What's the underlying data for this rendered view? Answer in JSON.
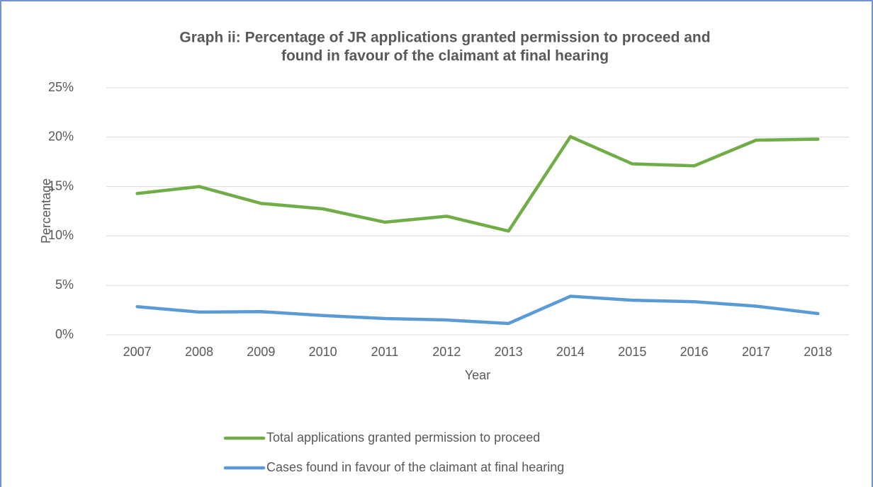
{
  "chart_data": {
    "type": "line",
    "title": [
      "Graph ii: Percentage of JR applications granted permission to proceed and",
      "found in favour of the claimant at final hearing"
    ],
    "x_label": "Year",
    "y_label": "Percentage",
    "categories": [
      "2007",
      "2008",
      "2009",
      "2010",
      "2011",
      "2012",
      "2013",
      "2014",
      "2015",
      "2016",
      "2017",
      "2018"
    ],
    "series": [
      {
        "name": "Total applications granted permission to proceed",
        "color": "#70ad47",
        "values": [
          14.3,
          15.0,
          13.3,
          12.75,
          11.4,
          12.0,
          10.5,
          20.05,
          17.3,
          17.1,
          19.7,
          19.8
        ]
      },
      {
        "name": "Cases found in favour of the claimant at final hearing",
        "color": "#5b9bd5",
        "values": [
          2.85,
          2.3,
          2.35,
          1.95,
          1.65,
          1.5,
          1.15,
          3.9,
          3.5,
          3.35,
          2.9,
          2.15
        ]
      }
    ],
    "ylim": [
      0,
      25
    ],
    "yticks": [
      {
        "value": 0,
        "label": "0%"
      },
      {
        "value": 5,
        "label": "5%"
      },
      {
        "value": 10,
        "label": "10%"
      },
      {
        "value": 15,
        "label": "15%"
      },
      {
        "value": 20,
        "label": "20%"
      },
      {
        "value": 25,
        "label": "25%"
      }
    ],
    "grid": true,
    "legend": "bottom"
  }
}
